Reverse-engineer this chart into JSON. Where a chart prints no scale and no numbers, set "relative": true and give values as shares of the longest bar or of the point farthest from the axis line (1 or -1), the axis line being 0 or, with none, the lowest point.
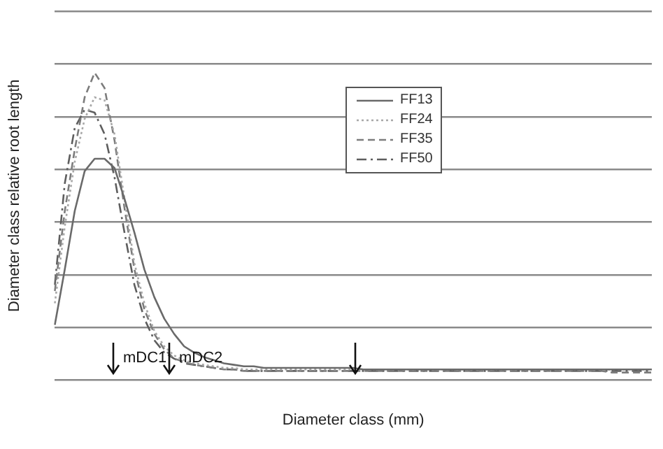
{
  "chart_data": {
    "type": "line",
    "relative": true,
    "xlabel": "Diameter class (mm)",
    "ylabel": "Diameter class relative root length",
    "grid": "y",
    "legend": "top right",
    "marker": "none",
    "categories": [
      null,
      null,
      null,
      null,
      null,
      null,
      null,
      null,
      null,
      null,
      null,
      null,
      null,
      null,
      null,
      null,
      null,
      null,
      null,
      null,
      null,
      null,
      null,
      null,
      null,
      null,
      null,
      null,
      null,
      null,
      null,
      null,
      null,
      null,
      null,
      null,
      null,
      null,
      null,
      null,
      null,
      null,
      null,
      null,
      null,
      null,
      null,
      null,
      null,
      null,
      null,
      null,
      null,
      null,
      null,
      null,
      null,
      null,
      null,
      null,
      null
    ],
    "series": [
      {
        "name": "FF13",
        "color": "#6a6a6a",
        "line_style": "solid",
        "values": [
          0.18,
          0.36,
          0.55,
          0.68,
          0.72,
          0.72,
          0.69,
          0.59,
          0.48,
          0.36,
          0.27,
          0.2,
          0.15,
          0.11,
          0.09,
          0.075,
          0.065,
          0.055,
          0.05,
          0.045,
          0.045,
          0.04,
          0.04,
          0.04,
          0.04,
          0.04,
          0.04,
          0.04,
          0.04,
          0.04,
          0.04,
          0.035,
          0.035,
          0.035,
          0.035,
          0.035,
          0.035,
          0.035,
          0.035,
          0.035,
          0.035,
          0.035,
          0.035,
          0.035,
          0.035,
          0.035,
          0.035,
          0.035,
          0.035,
          0.035,
          0.035,
          0.035,
          0.035,
          0.035,
          0.035,
          0.035,
          0.035,
          0.035,
          0.035,
          0.035,
          0.035
        ]
      },
      {
        "name": "FF24",
        "color": "#a8a8a8",
        "line_style": "dotted",
        "values": [
          0.25,
          0.5,
          0.71,
          0.85,
          0.92,
          0.91,
          0.8,
          0.59,
          0.38,
          0.25,
          0.16,
          0.11,
          0.08,
          0.065,
          0.055,
          0.05,
          0.045,
          0.04,
          0.04,
          0.035,
          0.035,
          0.035,
          0.035,
          0.035,
          0.035,
          0.035,
          0.035,
          0.035,
          0.035,
          0.035,
          0.035,
          0.035,
          0.035,
          0.035,
          0.035,
          0.035,
          0.035,
          0.035,
          0.035,
          0.035,
          0.035,
          0.035,
          0.035,
          0.035,
          0.035,
          0.035,
          0.035,
          0.035,
          0.035,
          0.035,
          0.035,
          0.035,
          0.035,
          0.035,
          0.035,
          0.035,
          0.035,
          0.035,
          0.035,
          0.035,
          0.035
        ]
      },
      {
        "name": "FF35",
        "color": "#7c7c7c",
        "line_style": "dashed",
        "values": [
          0.29,
          0.55,
          0.75,
          0.92,
          1,
          0.95,
          0.78,
          0.56,
          0.36,
          0.23,
          0.15,
          0.1,
          0.07,
          0.06,
          0.05,
          0.045,
          0.04,
          0.035,
          0.035,
          0.03,
          0.03,
          0.03,
          0.03,
          0.03,
          0.03,
          0.03,
          0.03,
          0.03,
          0.03,
          0.03,
          0.03,
          0.03,
          0.03,
          0.03,
          0.03,
          0.03,
          0.03,
          0.03,
          0.03,
          0.03,
          0.03,
          0.03,
          0.03,
          0.03,
          0.03,
          0.03,
          0.03,
          0.03,
          0.03,
          0.03,
          0.03,
          0.03,
          0.03,
          0.03,
          0.03,
          0.03,
          0.025,
          0.025,
          0.025,
          0.025,
          0.025
        ]
      },
      {
        "name": "FF50",
        "color": "#5e5e5e",
        "line_style": "dashdot",
        "values": [
          0.31,
          0.64,
          0.82,
          0.88,
          0.87,
          0.8,
          0.66,
          0.48,
          0.31,
          0.2,
          0.13,
          0.09,
          0.07,
          0.055,
          0.05,
          0.045,
          0.04,
          0.035,
          0.035,
          0.03,
          0.03,
          0.03,
          0.03,
          0.03,
          0.03,
          0.03,
          0.03,
          0.03,
          0.03,
          0.03,
          0.03,
          0.03,
          0.03,
          0.03,
          0.03,
          0.03,
          0.03,
          0.03,
          0.03,
          0.03,
          0.03,
          0.03,
          0.03,
          0.03,
          0.03,
          0.03,
          0.03,
          0.03,
          0.03,
          0.03,
          0.03,
          0.03,
          0.03,
          0.03,
          0.03,
          0.03,
          0.03,
          0.03,
          0.03,
          0.03,
          0.03
        ]
      }
    ],
    "annotations": [
      "mDC1",
      "mDC2"
    ]
  }
}
